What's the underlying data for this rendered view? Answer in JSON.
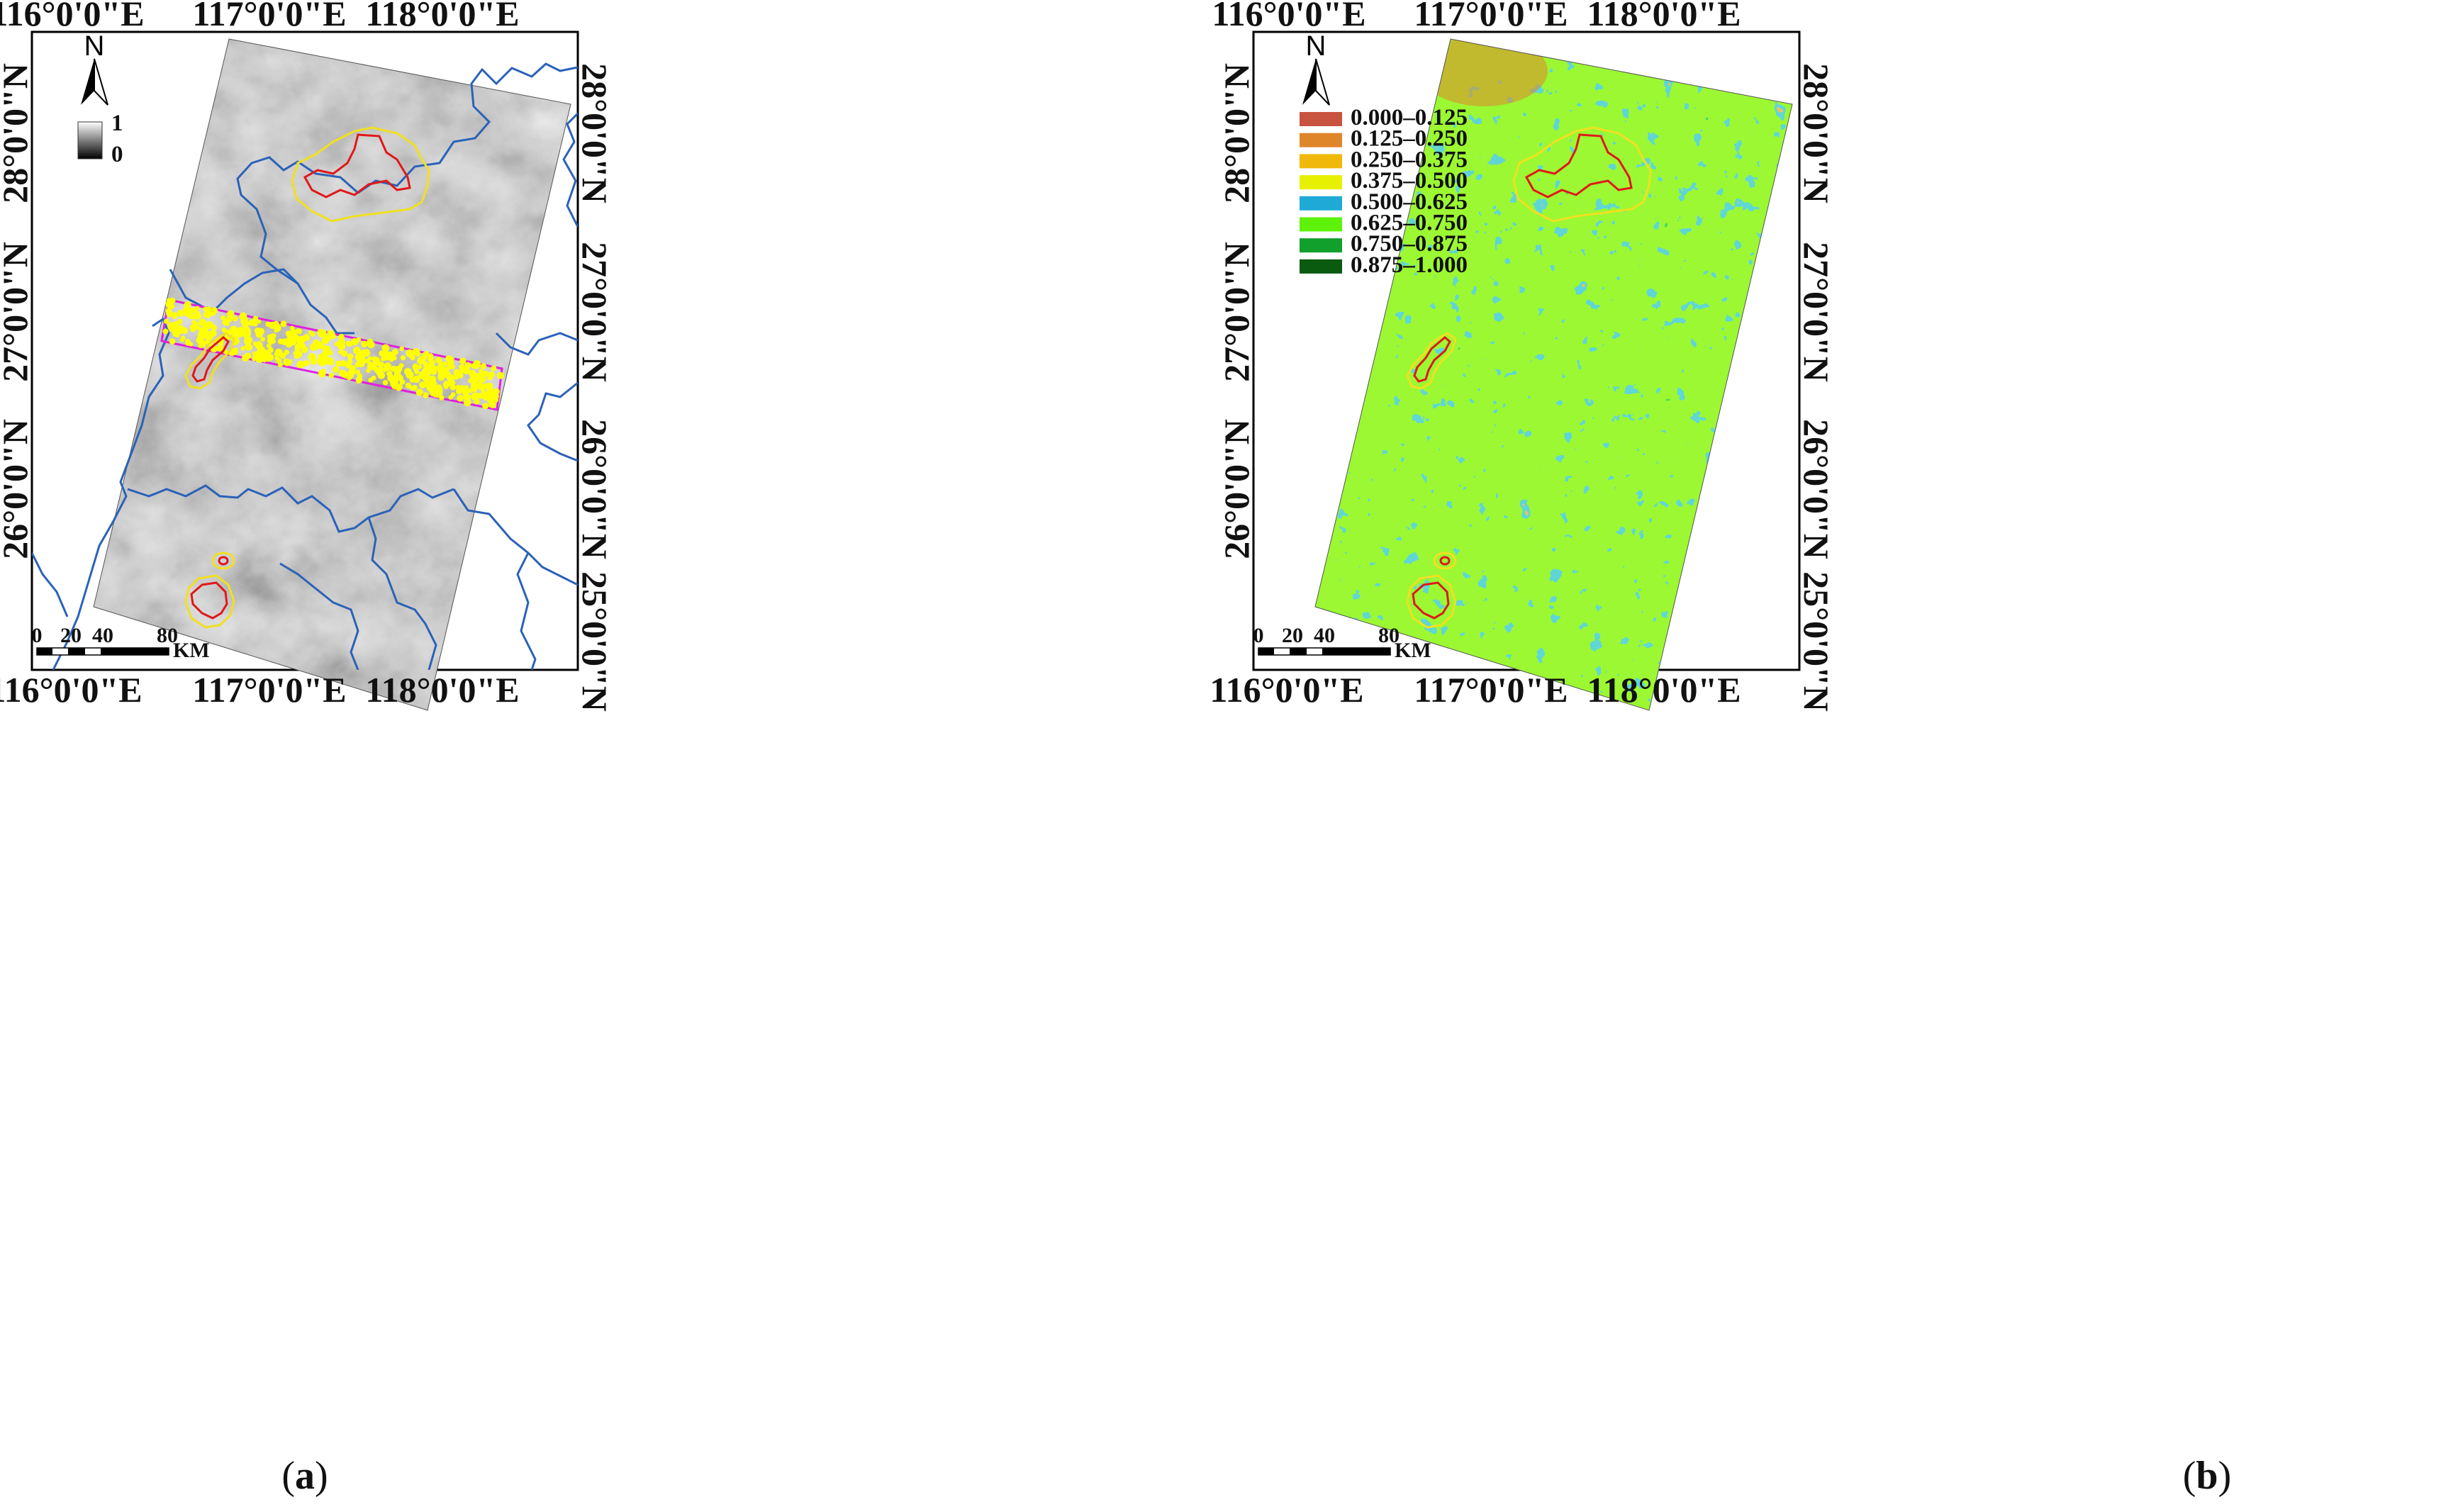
{
  "panels": [
    {
      "caption_label": "a",
      "lon_ticks": [
        "116°0'0\"E",
        "117°0'0\"E",
        "118°0'0\"E"
      ],
      "lat_ticks": [
        "28°0'0\"N",
        "27°0'0\"N",
        "26°0'0\"N",
        "25°0'0\"N"
      ],
      "north_label": "N",
      "colorbar": {
        "max_label": "1",
        "min_label": "0"
      },
      "scale_bar": {
        "ticks": [
          "0",
          "20",
          "40",
          "80"
        ],
        "unit": "KM"
      }
    },
    {
      "caption_label": "b",
      "lon_ticks": [
        "116°0'0\"E",
        "117°0'0\"E",
        "118°0'0\"E"
      ],
      "lat_ticks": [
        "28°0'0\"N",
        "27°0'0\"N",
        "26°0'0\"N",
        "25°0'0\"N"
      ],
      "north_label": "N",
      "legend": [
        {
          "label": "0.000–0.125",
          "color": "#c8533f"
        },
        {
          "label": "0.125–0.250",
          "color": "#e0862a"
        },
        {
          "label": "0.250–0.375",
          "color": "#f0b80a"
        },
        {
          "label": "0.375–0.500",
          "color": "#e7f000"
        },
        {
          "label": "0.500–0.625",
          "color": "#1ea9d6"
        },
        {
          "label": "0.625–0.750",
          "color": "#5ef20a"
        },
        {
          "label": "0.750–0.875",
          "color": "#12a02c"
        },
        {
          "label": "0.875–1.000",
          "color": "#0a5a10"
        }
      ],
      "scale_bar": {
        "ticks": [
          "0",
          "20",
          "40",
          "80"
        ],
        "unit": "KM"
      }
    }
  ],
  "colors": {
    "boundary": "#2a62b8",
    "reserve_core": "#e01818",
    "reserve_buffer": "#f0e020",
    "sample_band": "#e020e0",
    "sample_points": "#ffff00"
  }
}
